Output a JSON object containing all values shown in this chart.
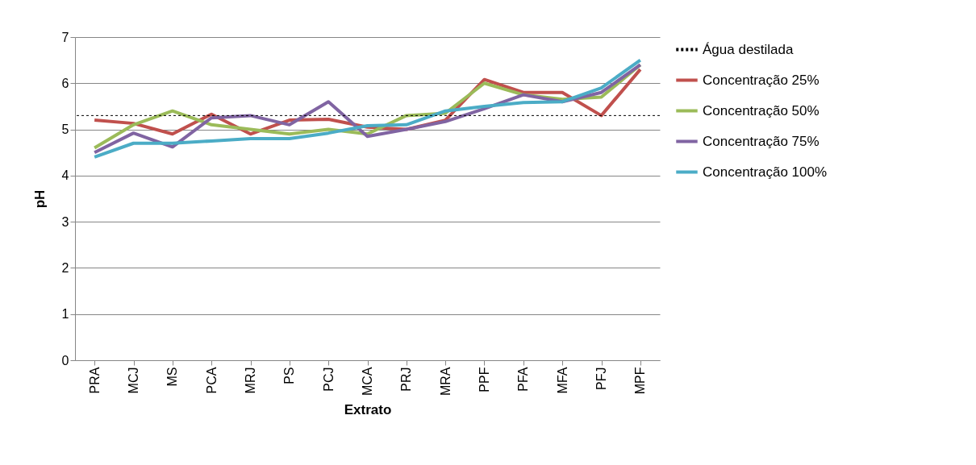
{
  "chart_data": {
    "type": "line",
    "xlabel": "Extrato",
    "ylabel": "pH",
    "categories": [
      "PRA",
      "MCJ",
      "MS",
      "PCA",
      "MRJ",
      "PS",
      "PCJ",
      "MCA",
      "PRJ",
      "MRA",
      "PPF",
      "PFA",
      "MFA",
      "PFJ",
      "MPF"
    ],
    "series": [
      {
        "name": "Concentração 25%",
        "color": "#c0504d",
        "values": [
          5.2,
          5.13,
          4.9,
          5.33,
          4.9,
          5.2,
          5.22,
          5.05,
          5.0,
          5.2,
          6.08,
          5.8,
          5.8,
          5.3,
          6.3
        ]
      },
      {
        "name": "Concentração 50%",
        "color": "#9bbb59",
        "values": [
          4.6,
          5.1,
          5.4,
          5.1,
          5.0,
          4.9,
          5.0,
          4.9,
          5.3,
          5.35,
          6.0,
          5.75,
          5.65,
          5.7,
          6.4
        ]
      },
      {
        "name": "Concentração 75%",
        "color": "#8064a2",
        "values": [
          4.5,
          4.92,
          4.62,
          5.25,
          5.3,
          5.1,
          5.6,
          4.85,
          5.0,
          5.17,
          5.45,
          5.75,
          5.6,
          5.8,
          6.4
        ]
      },
      {
        "name": "Concentração 100%",
        "color": "#4bacc6",
        "values": [
          4.4,
          4.7,
          4.7,
          4.75,
          4.8,
          4.8,
          4.92,
          5.08,
          5.1,
          5.4,
          5.5,
          5.58,
          5.6,
          5.9,
          6.5
        ]
      }
    ],
    "ref_lines": [
      {
        "axis": "y",
        "value": 5.3,
        "label": "Água destilada",
        "color": "#000000",
        "line_style": "dashed"
      }
    ],
    "ylim": [
      0,
      7
    ],
    "yticks": [
      0,
      1,
      2,
      3,
      4,
      5,
      6,
      7
    ],
    "grid": "y",
    "legend": "right",
    "marker": "none",
    "line_style": "solid"
  }
}
